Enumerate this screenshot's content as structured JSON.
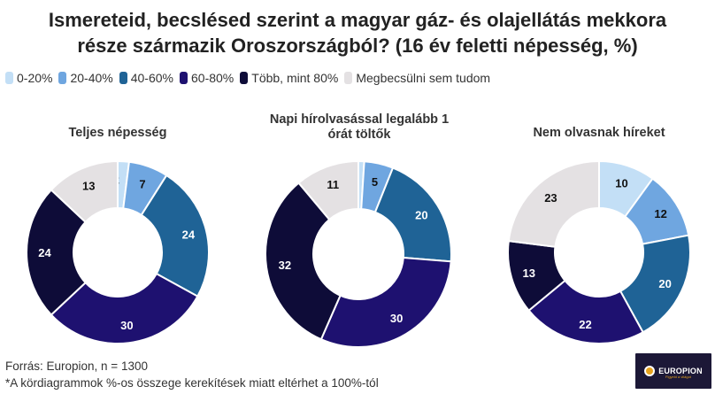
{
  "title_lines": [
    "Ismereteid, becslésed szerint a magyar gáz- és olajellátás mekkora",
    "része származik Oroszországból? (16 év feletti népesség, %)"
  ],
  "legend": [
    {
      "label": "0-20%",
      "color": "#c3dff6"
    },
    {
      "label": "20-40%",
      "color": "#6fa6e0"
    },
    {
      "label": "40-60%",
      "color": "#1f6396"
    },
    {
      "label": "60-80%",
      "color": "#1e1170"
    },
    {
      "label": "Több, mint 80%",
      "color": "#0e0c38"
    },
    {
      "label": "Megbecsülni sem tudom",
      "color": "#e4e1e3"
    }
  ],
  "chart_data": [
    {
      "type": "pie",
      "variant": "donut",
      "title": "Teljes népesség",
      "categories": [
        "0-20%",
        "20-40%",
        "40-60%",
        "60-80%",
        "Több, mint 80%",
        "Megbecsülni sem tudom"
      ],
      "values": [
        2,
        7,
        24,
        30,
        24,
        13
      ],
      "start": "12 o'clock",
      "direction": "clockwise"
    },
    {
      "type": "pie",
      "variant": "donut",
      "title": "Napi hírolvasással legalább 1 órát töltők",
      "categories": [
        "0-20%",
        "20-40%",
        "40-60%",
        "60-80%",
        "Több, mint 80%",
        "Megbecsülni sem tudom"
      ],
      "values": [
        1,
        5,
        20,
        30,
        32,
        11
      ],
      "start": "12 o'clock",
      "direction": "clockwise"
    },
    {
      "type": "pie",
      "variant": "donut",
      "title": "Nem olvasnak híreket",
      "categories": [
        "0-20%",
        "20-40%",
        "40-60%",
        "60-80%",
        "Több, mint 80%",
        "Megbecsülni sem tudom"
      ],
      "values": [
        10,
        12,
        20,
        22,
        13,
        23
      ],
      "start": "12 o'clock",
      "direction": "clockwise"
    }
  ],
  "label_colors": {
    "light": "#111111",
    "dark": "#ffffff"
  },
  "footer": {
    "source": "Forrás: Europion, n = 1300",
    "note": "*A kördiagrammok %-os összege kerekítések miatt eltérhet a 100%-tól"
  },
  "logo": {
    "text": "EUROPION",
    "tagline": "Figyeld a világot"
  }
}
